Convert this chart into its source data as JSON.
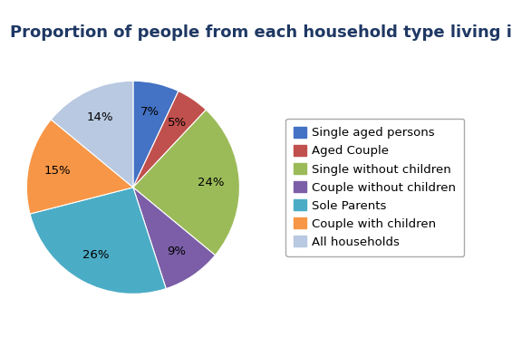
{
  "title": "Proportion of people from each household type living in proverty",
  "labels": [
    "Single aged persons",
    "Aged Couple",
    "Single without children",
    "Couple without children",
    "Sole Parents",
    "Couple with children",
    "All households"
  ],
  "values": [
    7,
    5,
    24,
    9,
    26,
    15,
    14
  ],
  "colors": [
    "#4472C4",
    "#C0504D",
    "#9BBB59",
    "#7B5EA7",
    "#4BACC6",
    "#F79646",
    "#B8C9E1"
  ],
  "title_fontsize": 13,
  "legend_fontsize": 9.5,
  "autopct_fontsize": 9.5,
  "background_color": "#ffffff",
  "startangle": 90
}
